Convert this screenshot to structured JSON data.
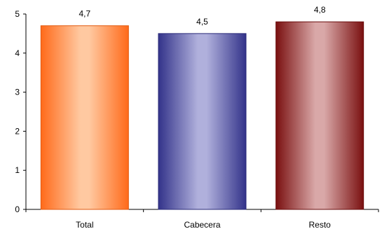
{
  "chart_data": {
    "type": "bar",
    "title": "",
    "xlabel": "",
    "ylabel": "",
    "categories": [
      "Total",
      "Cabecera",
      "Resto"
    ],
    "values": [
      4.7,
      4.5,
      4.8
    ],
    "value_labels": [
      "4,7",
      "4,5",
      "4,8"
    ],
    "ylim": [
      0,
      5
    ],
    "yticks": [
      0,
      1,
      2,
      3,
      4,
      5
    ],
    "grid": false,
    "legend": "none",
    "bar_colors": [
      {
        "edge": "#ff6a1a",
        "mid": "#ffc9a1",
        "stroke": "#e05a10"
      },
      {
        "edge": "#33338a",
        "mid": "#b0b0dc",
        "stroke": "#2a2a78"
      },
      {
        "edge": "#7a1010",
        "mid": "#d9a8a8",
        "stroke": "#6a0c0c"
      }
    ]
  }
}
